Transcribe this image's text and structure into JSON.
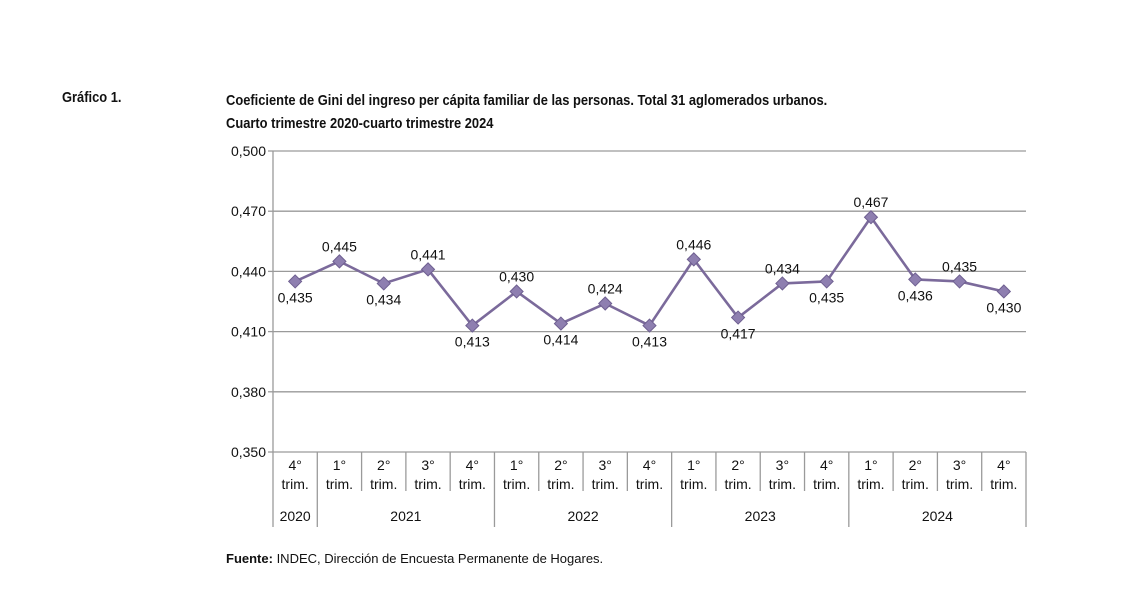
{
  "figure_label": "Gráfico 1.",
  "chart_data": {
    "type": "line",
    "title": "Coeficiente de Gini del ingreso per cápita familiar de las personas. Total 31 aglomerados urbanos.",
    "subtitle": "Cuarto trimestre 2020-cuarto trimestre 2024",
    "xlabel": "",
    "ylabel": "",
    "ylim": [
      0.35,
      0.5
    ],
    "yticks": [
      "0,500",
      "0,470",
      "0,440",
      "0,410",
      "0,380",
      "0,350"
    ],
    "ytick_values": [
      0.5,
      0.47,
      0.44,
      0.41,
      0.38,
      0.35
    ],
    "grid": true,
    "categories": [
      {
        "quarter": "4°",
        "unit": "trim.",
        "year": "2020"
      },
      {
        "quarter": "1°",
        "unit": "trim.",
        "year": "2021"
      },
      {
        "quarter": "2°",
        "unit": "trim.",
        "year": "2021"
      },
      {
        "quarter": "3°",
        "unit": "trim.",
        "year": "2021"
      },
      {
        "quarter": "4°",
        "unit": "trim.",
        "year": "2021"
      },
      {
        "quarter": "1°",
        "unit": "trim.",
        "year": "2022"
      },
      {
        "quarter": "2°",
        "unit": "trim.",
        "year": "2022"
      },
      {
        "quarter": "3°",
        "unit": "trim.",
        "year": "2022"
      },
      {
        "quarter": "4°",
        "unit": "trim.",
        "year": "2022"
      },
      {
        "quarter": "1°",
        "unit": "trim.",
        "year": "2023"
      },
      {
        "quarter": "2°",
        "unit": "trim.",
        "year": "2023"
      },
      {
        "quarter": "3°",
        "unit": "trim.",
        "year": "2023"
      },
      {
        "quarter": "4°",
        "unit": "trim.",
        "year": "2023"
      },
      {
        "quarter": "1°",
        "unit": "trim.",
        "year": "2024"
      },
      {
        "quarter": "2°",
        "unit": "trim.",
        "year": "2024"
      },
      {
        "quarter": "3°",
        "unit": "trim.",
        "year": "2024"
      },
      {
        "quarter": "4°",
        "unit": "trim.",
        "year": "2024"
      }
    ],
    "years": [
      "2020",
      "2021",
      "2022",
      "2023",
      "2024"
    ],
    "series": [
      {
        "name": "Coeficiente de Gini",
        "color": "#7b6a9b",
        "values": [
          0.435,
          0.445,
          0.434,
          0.441,
          0.413,
          0.43,
          0.414,
          0.424,
          0.413,
          0.446,
          0.417,
          0.434,
          0.435,
          0.467,
          0.436,
          0.435,
          0.43
        ],
        "labels": [
          "0,435",
          "0,445",
          "0,434",
          "0,441",
          "0,413",
          "0,430",
          "0,414",
          "0,424",
          "0,413",
          "0,446",
          "0,417",
          "0,434",
          "0,435",
          "0,467",
          "0,436",
          "0,435",
          "0,430"
        ],
        "label_positions": [
          "below",
          "above",
          "below",
          "above",
          "below",
          "above",
          "below",
          "above",
          "below",
          "above",
          "below",
          "above",
          "below",
          "above",
          "below",
          "above",
          "below"
        ]
      }
    ],
    "legend": "none"
  },
  "source": {
    "label": "Fuente:",
    "text": " INDEC, Dirección de Encuesta Permanente de Hogares."
  }
}
